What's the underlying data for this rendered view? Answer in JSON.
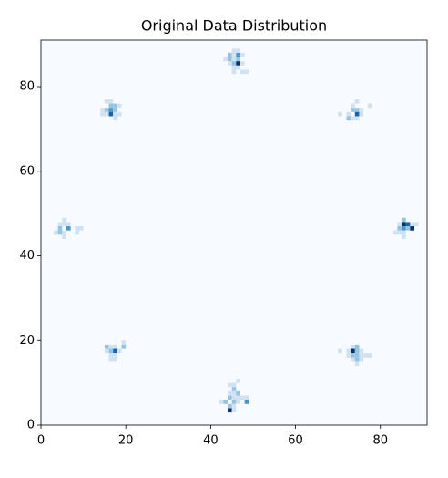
{
  "chart_data": {
    "type": "heatmap",
    "title": "Original Data Distribution",
    "xlim": [
      0,
      91
    ],
    "ylim": [
      0,
      91
    ],
    "xticks": [
      0,
      20,
      40,
      60,
      80
    ],
    "yticks": [
      0,
      20,
      40,
      60,
      80
    ],
    "clim": [
      0,
      5
    ],
    "colors": [
      "#f7fbff",
      "#deebf7",
      "#c6dbef",
      "#9ecae1",
      "#6baed6",
      "#4292c6",
      "#2171b5",
      "#08519c",
      "#08306b"
    ],
    "cells": [
      {
        "x": 45,
        "y": 88,
        "value": 1
      },
      {
        "x": 46,
        "y": 88,
        "value": 1
      },
      {
        "x": 44,
        "y": 87,
        "value": 2
      },
      {
        "x": 45,
        "y": 87,
        "value": 1
      },
      {
        "x": 46,
        "y": 87,
        "value": 3
      },
      {
        "x": 47,
        "y": 87,
        "value": 1
      },
      {
        "x": 43,
        "y": 86,
        "value": 1
      },
      {
        "x": 44,
        "y": 86,
        "value": 2
      },
      {
        "x": 45,
        "y": 86,
        "value": 1
      },
      {
        "x": 46,
        "y": 86,
        "value": 2
      },
      {
        "x": 44,
        "y": 85,
        "value": 1
      },
      {
        "x": 45,
        "y": 85,
        "value": 2
      },
      {
        "x": 46,
        "y": 85,
        "value": 5
      },
      {
        "x": 47,
        "y": 85,
        "value": 1
      },
      {
        "x": 45,
        "y": 84,
        "value": 1
      },
      {
        "x": 46,
        "y": 84,
        "value": 1
      },
      {
        "x": 45,
        "y": 83,
        "value": 1
      },
      {
        "x": 47,
        "y": 83,
        "value": 1
      },
      {
        "x": 48,
        "y": 83,
        "value": 1
      },
      {
        "x": 15,
        "y": 76,
        "value": 1
      },
      {
        "x": 16,
        "y": 76,
        "value": 1
      },
      {
        "x": 16,
        "y": 75,
        "value": 2
      },
      {
        "x": 17,
        "y": 75,
        "value": 2
      },
      {
        "x": 18,
        "y": 75,
        "value": 1
      },
      {
        "x": 14,
        "y": 74,
        "value": 1
      },
      {
        "x": 15,
        "y": 74,
        "value": 2
      },
      {
        "x": 16,
        "y": 74,
        "value": 3
      },
      {
        "x": 17,
        "y": 74,
        "value": 2
      },
      {
        "x": 14,
        "y": 73,
        "value": 1
      },
      {
        "x": 15,
        "y": 73,
        "value": 1
      },
      {
        "x": 16,
        "y": 73,
        "value": 4
      },
      {
        "x": 17,
        "y": 73,
        "value": 1
      },
      {
        "x": 18,
        "y": 73,
        "value": 1
      },
      {
        "x": 17,
        "y": 72,
        "value": 1
      },
      {
        "x": 74,
        "y": 76,
        "value": 1
      },
      {
        "x": 73,
        "y": 75,
        "value": 1
      },
      {
        "x": 77,
        "y": 75,
        "value": 1
      },
      {
        "x": 73,
        "y": 74,
        "value": 2
      },
      {
        "x": 74,
        "y": 74,
        "value": 2
      },
      {
        "x": 75,
        "y": 74,
        "value": 1
      },
      {
        "x": 70,
        "y": 73,
        "value": 1
      },
      {
        "x": 72,
        "y": 73,
        "value": 1
      },
      {
        "x": 74,
        "y": 73,
        "value": 4
      },
      {
        "x": 75,
        "y": 73,
        "value": 1
      },
      {
        "x": 72,
        "y": 72,
        "value": 2
      },
      {
        "x": 73,
        "y": 72,
        "value": 1
      },
      {
        "x": 74,
        "y": 72,
        "value": 1
      },
      {
        "x": 5,
        "y": 48,
        "value": 1
      },
      {
        "x": 4,
        "y": 47,
        "value": 1
      },
      {
        "x": 5,
        "y": 47,
        "value": 1
      },
      {
        "x": 6,
        "y": 47,
        "value": 1
      },
      {
        "x": 4,
        "y": 46,
        "value": 2
      },
      {
        "x": 6,
        "y": 46,
        "value": 3
      },
      {
        "x": 8,
        "y": 46,
        "value": 1
      },
      {
        "x": 9,
        "y": 46,
        "value": 1
      },
      {
        "x": 3,
        "y": 45,
        "value": 1
      },
      {
        "x": 4,
        "y": 45,
        "value": 2
      },
      {
        "x": 5,
        "y": 45,
        "value": 1
      },
      {
        "x": 8,
        "y": 45,
        "value": 1
      },
      {
        "x": 5,
        "y": 44,
        "value": 1
      },
      {
        "x": 85,
        "y": 48,
        "value": 2
      },
      {
        "x": 84,
        "y": 47,
        "value": 1
      },
      {
        "x": 85,
        "y": 47,
        "value": 5
      },
      {
        "x": 86,
        "y": 47,
        "value": 4
      },
      {
        "x": 87,
        "y": 47,
        "value": 1
      },
      {
        "x": 88,
        "y": 47,
        "value": 1
      },
      {
        "x": 84,
        "y": 46,
        "value": 2
      },
      {
        "x": 85,
        "y": 46,
        "value": 3
      },
      {
        "x": 86,
        "y": 46,
        "value": 2
      },
      {
        "x": 87,
        "y": 46,
        "value": 5
      },
      {
        "x": 83,
        "y": 45,
        "value": 1
      },
      {
        "x": 84,
        "y": 45,
        "value": 1
      },
      {
        "x": 85,
        "y": 45,
        "value": 1
      },
      {
        "x": 85,
        "y": 44,
        "value": 1
      },
      {
        "x": 19,
        "y": 19,
        "value": 1
      },
      {
        "x": 15,
        "y": 18,
        "value": 2
      },
      {
        "x": 16,
        "y": 18,
        "value": 1
      },
      {
        "x": 17,
        "y": 18,
        "value": 1
      },
      {
        "x": 19,
        "y": 18,
        "value": 2
      },
      {
        "x": 15,
        "y": 17,
        "value": 1
      },
      {
        "x": 16,
        "y": 17,
        "value": 2
      },
      {
        "x": 17,
        "y": 17,
        "value": 4
      },
      {
        "x": 18,
        "y": 17,
        "value": 1
      },
      {
        "x": 16,
        "y": 16,
        "value": 1
      },
      {
        "x": 17,
        "y": 16,
        "value": 1
      },
      {
        "x": 16,
        "y": 15,
        "value": 1
      },
      {
        "x": 17,
        "y": 15,
        "value": 1
      },
      {
        "x": 73,
        "y": 18,
        "value": 1
      },
      {
        "x": 74,
        "y": 18,
        "value": 2
      },
      {
        "x": 70,
        "y": 17,
        "value": 1
      },
      {
        "x": 72,
        "y": 17,
        "value": 1
      },
      {
        "x": 73,
        "y": 17,
        "value": 5
      },
      {
        "x": 74,
        "y": 17,
        "value": 2
      },
      {
        "x": 75,
        "y": 17,
        "value": 1
      },
      {
        "x": 72,
        "y": 16,
        "value": 1
      },
      {
        "x": 73,
        "y": 16,
        "value": 2
      },
      {
        "x": 74,
        "y": 16,
        "value": 2
      },
      {
        "x": 75,
        "y": 16,
        "value": 1
      },
      {
        "x": 76,
        "y": 16,
        "value": 1
      },
      {
        "x": 77,
        "y": 16,
        "value": 1
      },
      {
        "x": 73,
        "y": 15,
        "value": 1
      },
      {
        "x": 74,
        "y": 15,
        "value": 2
      },
      {
        "x": 75,
        "y": 15,
        "value": 1
      },
      {
        "x": 74,
        "y": 14,
        "value": 1
      },
      {
        "x": 46,
        "y": 10,
        "value": 1
      },
      {
        "x": 44,
        "y": 9,
        "value": 1
      },
      {
        "x": 45,
        "y": 9,
        "value": 1
      },
      {
        "x": 45,
        "y": 8,
        "value": 2
      },
      {
        "x": 44,
        "y": 7,
        "value": 1
      },
      {
        "x": 45,
        "y": 7,
        "value": 1
      },
      {
        "x": 46,
        "y": 7,
        "value": 2
      },
      {
        "x": 44,
        "y": 6,
        "value": 2
      },
      {
        "x": 45,
        "y": 6,
        "value": 1
      },
      {
        "x": 46,
        "y": 6,
        "value": 1
      },
      {
        "x": 47,
        "y": 6,
        "value": 1
      },
      {
        "x": 48,
        "y": 6,
        "value": 1
      },
      {
        "x": 42,
        "y": 5,
        "value": 1
      },
      {
        "x": 43,
        "y": 5,
        "value": 2
      },
      {
        "x": 45,
        "y": 5,
        "value": 2
      },
      {
        "x": 46,
        "y": 5,
        "value": 1
      },
      {
        "x": 48,
        "y": 5,
        "value": 3
      },
      {
        "x": 44,
        "y": 4,
        "value": 2
      },
      {
        "x": 45,
        "y": 4,
        "value": 1
      },
      {
        "x": 44,
        "y": 3,
        "value": 5
      },
      {
        "x": 45,
        "y": 3,
        "value": 1
      }
    ]
  }
}
